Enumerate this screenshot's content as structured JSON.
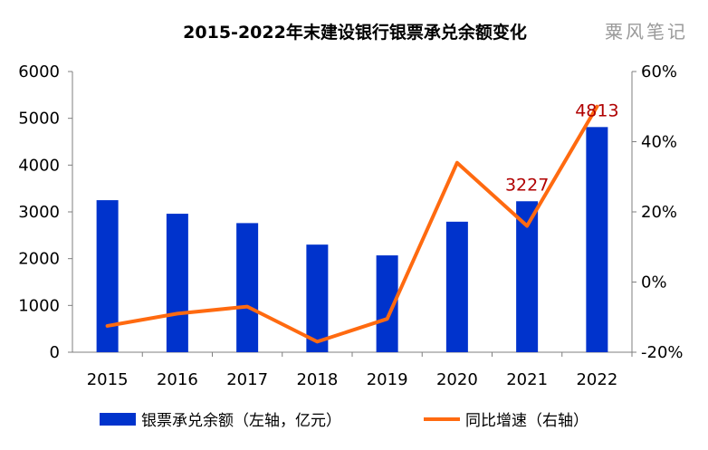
{
  "chart_data": {
    "type": "bar",
    "title": "2015-2022年末建设银行银票承兑余额变化",
    "categories": [
      "2015",
      "2016",
      "2017",
      "2018",
      "2019",
      "2020",
      "2021",
      "2022"
    ],
    "series": [
      {
        "name": "银票承兑余额（左轴，亿元）",
        "type": "bar",
        "axis": "left",
        "color": "#0033cc",
        "values": [
          3250,
          2960,
          2760,
          2300,
          2070,
          2790,
          3227,
          4813
        ]
      },
      {
        "name": "同比增速（右轴）",
        "type": "line",
        "axis": "right",
        "color": "#ff6a10",
        "values": [
          -12.5,
          -9.0,
          -7.0,
          -17.0,
          -10.5,
          34.0,
          16.0,
          50.0
        ]
      }
    ],
    "data_labels": [
      {
        "category": "2021",
        "text": "3227"
      },
      {
        "category": "2022",
        "text": "4813"
      }
    ],
    "y_left": {
      "min": 0,
      "max": 6000,
      "ticks": [
        "0",
        "1000",
        "2000",
        "3000",
        "4000",
        "5000",
        "6000"
      ]
    },
    "y_right": {
      "min": -20,
      "max": 60,
      "ticks": [
        "-20%",
        "0%",
        "20%",
        "40%",
        "60%"
      ]
    },
    "grid": false,
    "legend_position": "bottom"
  },
  "watermark": "粟风笔记"
}
